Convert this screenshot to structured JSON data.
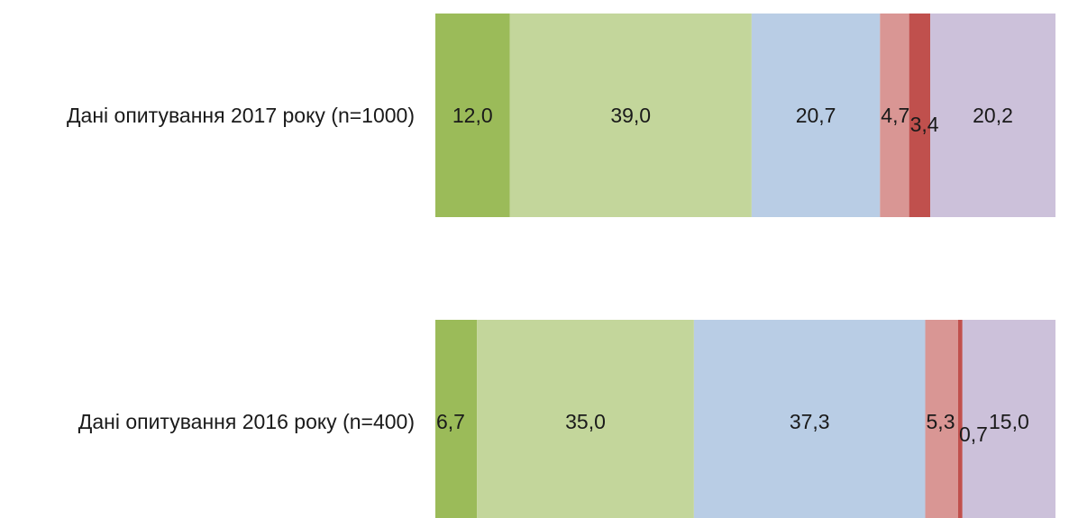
{
  "chart_data": {
    "type": "bar",
    "orientation": "horizontal",
    "stacked": true,
    "title": "",
    "xlabel": "",
    "ylabel": "",
    "xlim": [
      0,
      100
    ],
    "grid": false,
    "legend": "none",
    "categories": [
      "Дані опитування 2017 року (n=1000)",
      "Дані опитування 2016 року (n=400)"
    ],
    "series": [
      {
        "color": "#9bbb59",
        "values": [
          12.0,
          6.7
        ],
        "labels": [
          "12,0",
          "6,7"
        ]
      },
      {
        "color": "#c3d69b",
        "values": [
          39.0,
          35.0
        ],
        "labels": [
          "39,0",
          "35,0"
        ]
      },
      {
        "color": "#b9cde5",
        "values": [
          20.7,
          37.3
        ],
        "labels": [
          "20,7",
          "37,3"
        ]
      },
      {
        "color": "#d99694",
        "values": [
          4.7,
          5.3
        ],
        "labels": [
          "4,7",
          "5,3"
        ]
      },
      {
        "color": "#c0504d",
        "values": [
          3.4,
          0.7
        ],
        "labels": [
          "3,4",
          "0,7"
        ]
      },
      {
        "color": "#ccc1da",
        "values": [
          20.2,
          15.0
        ],
        "labels": [
          "20,2",
          "15,0"
        ]
      }
    ]
  }
}
